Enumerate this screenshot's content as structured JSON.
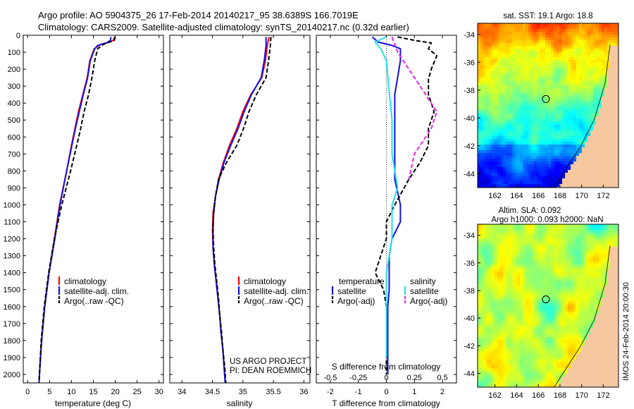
{
  "header": {
    "line1": "Argo profile: AO 5904375_26 17-Feb-2014 20140217_95 38.6389S 166.7019E",
    "line2": "Climatology: CARS2009. Satellite-adjusted climatology: synTS_20140217.nc (0.32d earlier)"
  },
  "credit": {
    "project": "US ARGO PROJECT",
    "pi": "PI: DEAN ROEMMICH"
  },
  "timestamp": "IMOS 24-Feb-2014 20:00:30",
  "colors": {
    "climatology": "#ff0000",
    "satellite": "#1010ee",
    "argo": "#000000",
    "sat_salinity": "#20e0e8",
    "argo_adj_salinity": "#ee20ee",
    "land": "#f5c8a0"
  },
  "chart_data": [
    {
      "type": "line",
      "id": "temperature",
      "xlabel": "temperature (deg C)",
      "ylabel": "",
      "xlim": [
        -1,
        31
      ],
      "ylim": [
        2050,
        0
      ],
      "x_ticks": [
        0,
        5,
        10,
        15,
        20,
        25,
        30
      ],
      "y_ticks": [
        0,
        100,
        200,
        300,
        400,
        500,
        600,
        700,
        800,
        900,
        1000,
        1100,
        1200,
        1300,
        1400,
        1500,
        1600,
        1700,
        1800,
        1900,
        2000
      ],
      "legend": [
        "climatology",
        "satellite-adj. clim.",
        "Argo(..raw -QC)"
      ],
      "legend_position": "bottom-right",
      "series": [
        {
          "name": "climatology",
          "points": [
            [
              19.8,
              10
            ],
            [
              19.6,
              30
            ],
            [
              18.6,
              40
            ],
            [
              16.6,
              55
            ],
            [
              15.2,
              80
            ],
            [
              14.2,
              150
            ],
            [
              13.6,
              250
            ],
            [
              12.6,
              350
            ],
            [
              11.6,
              450
            ],
            [
              10.8,
              550
            ],
            [
              10.0,
              650
            ],
            [
              8.9,
              800
            ],
            [
              7.3,
              1000
            ],
            [
              6.1,
              1200
            ],
            [
              4.9,
              1400
            ],
            [
              3.9,
              1600
            ],
            [
              3.2,
              1800
            ],
            [
              2.7,
              2000
            ],
            [
              2.6,
              2050
            ]
          ]
        },
        {
          "name": "satellite-adj. clim.",
          "points": [
            [
              19.0,
              10
            ],
            [
              18.9,
              30
            ],
            [
              18.0,
              45
            ],
            [
              16.0,
              60
            ],
            [
              15.3,
              80
            ],
            [
              14.3,
              150
            ],
            [
              13.7,
              250
            ],
            [
              12.7,
              350
            ],
            [
              11.8,
              450
            ],
            [
              10.9,
              550
            ],
            [
              10.1,
              650
            ],
            [
              8.9,
              800
            ],
            [
              7.4,
              1000
            ],
            [
              6.2,
              1200
            ],
            [
              4.9,
              1400
            ],
            [
              3.9,
              1600
            ],
            [
              3.2,
              1800
            ],
            [
              2.7,
              2000
            ],
            [
              2.6,
              2050
            ]
          ]
        },
        {
          "name": "Argo(..raw -QC)",
          "points": [
            [
              20.0,
              10
            ],
            [
              19.8,
              30
            ],
            [
              18.5,
              42
            ],
            [
              17.2,
              55
            ],
            [
              16.0,
              80
            ],
            [
              15.3,
              150
            ],
            [
              14.7,
              250
            ],
            [
              13.9,
              350
            ],
            [
              12.9,
              450
            ],
            [
              12.1,
              550
            ],
            [
              11.2,
              650
            ],
            [
              9.8,
              800
            ],
            [
              7.8,
              1000
            ],
            [
              6.1,
              1200
            ],
            [
              4.8,
              1400
            ],
            [
              3.8,
              1600
            ],
            [
              3.1,
              1800
            ],
            [
              2.7,
              2000
            ],
            [
              2.6,
              2050
            ]
          ]
        }
      ]
    },
    {
      "type": "line",
      "id": "salinity",
      "xlabel": "salinity",
      "ylabel": "",
      "xlim": [
        33.8,
        36.1
      ],
      "ylim": [
        2050,
        0
      ],
      "x_ticks": [
        34,
        34.5,
        35,
        35.5,
        36
      ],
      "legend": [
        "climatology",
        "satellite-adj. clim.",
        "Argo(..raw -QC)"
      ],
      "legend_position": "bottom-right",
      "series": [
        {
          "name": "climatology",
          "points": [
            [
              35.43,
              10
            ],
            [
              35.4,
              60
            ],
            [
              35.37,
              150
            ],
            [
              35.31,
              250
            ],
            [
              35.13,
              350
            ],
            [
              35.0,
              450
            ],
            [
              34.9,
              550
            ],
            [
              34.78,
              650
            ],
            [
              34.68,
              750
            ],
            [
              34.6,
              850
            ],
            [
              34.55,
              950
            ],
            [
              34.51,
              1050
            ],
            [
              34.5,
              1150
            ],
            [
              34.51,
              1250
            ],
            [
              34.53,
              1350
            ],
            [
              34.56,
              1450
            ],
            [
              34.59,
              1550
            ],
            [
              34.62,
              1650
            ],
            [
              34.64,
              1750
            ],
            [
              34.67,
              1850
            ],
            [
              34.69,
              1950
            ],
            [
              34.71,
              2050
            ]
          ]
        },
        {
          "name": "satellite-adj. clim.",
          "points": [
            [
              35.38,
              10
            ],
            [
              35.38,
              60
            ],
            [
              35.35,
              150
            ],
            [
              35.3,
              250
            ],
            [
              35.14,
              350
            ],
            [
              35.02,
              450
            ],
            [
              34.92,
              550
            ],
            [
              34.8,
              650
            ],
            [
              34.69,
              750
            ],
            [
              34.61,
              850
            ],
            [
              34.55,
              950
            ],
            [
              34.52,
              1050
            ],
            [
              34.51,
              1150
            ],
            [
              34.51,
              1250
            ],
            [
              34.53,
              1350
            ],
            [
              34.56,
              1450
            ],
            [
              34.59,
              1550
            ],
            [
              34.62,
              1650
            ],
            [
              34.64,
              1750
            ],
            [
              34.67,
              1850
            ],
            [
              34.69,
              1950
            ],
            [
              34.71,
              2050
            ]
          ]
        },
        {
          "name": "Argo(..raw -QC)",
          "points": [
            [
              35.46,
              10
            ],
            [
              35.45,
              60
            ],
            [
              35.42,
              150
            ],
            [
              35.38,
              250
            ],
            [
              35.22,
              350
            ],
            [
              35.1,
              450
            ],
            [
              35.01,
              550
            ],
            [
              34.9,
              650
            ],
            [
              34.73,
              750
            ],
            [
              34.6,
              850
            ],
            [
              34.55,
              950
            ],
            [
              34.52,
              1050
            ],
            [
              34.51,
              1150
            ],
            [
              34.52,
              1250
            ],
            [
              34.54,
              1350
            ],
            [
              34.57,
              1450
            ],
            [
              34.6,
              1550
            ],
            [
              34.62,
              1650
            ],
            [
              34.65,
              1750
            ],
            [
              34.67,
              1850
            ],
            [
              34.7,
              1950
            ],
            [
              34.72,
              2050
            ]
          ]
        }
      ]
    },
    {
      "type": "line",
      "id": "difference",
      "xlabel": "T difference from climatology",
      "x2label": "S difference from climatology",
      "ylabel": "",
      "xlim": [
        -2.5,
        2.5
      ],
      "ylim": [
        2050,
        0
      ],
      "x_ticks": [
        -2,
        -1,
        0,
        1,
        2
      ],
      "x2_ticks": [
        -0.5,
        -0.25,
        0,
        0.25,
        0.5
      ],
      "legend_groups": [
        {
          "title": "temperature",
          "entries": [
            "satellite",
            "Argo(-adj)"
          ]
        },
        {
          "title": "salinity",
          "entries": [
            "satellite",
            "Argo(-adj)"
          ]
        }
      ],
      "legend_position": "bottom",
      "series": [
        {
          "name": "temperature satellite",
          "points": [
            [
              -0.5,
              10
            ],
            [
              -0.3,
              40
            ],
            [
              0.2,
              60
            ],
            [
              0.5,
              80
            ],
            [
              0.5,
              150
            ],
            [
              0.4,
              250
            ],
            [
              0.3,
              350
            ],
            [
              0.3,
              450
            ],
            [
              0.3,
              550
            ],
            [
              0.3,
              650
            ],
            [
              0.3,
              750
            ],
            [
              0.3,
              850
            ],
            [
              0.5,
              1000
            ],
            [
              0.5,
              1100
            ],
            [
              0.2,
              1200
            ],
            [
              0.1,
              1300
            ],
            [
              0.1,
              1400
            ],
            [
              0.1,
              1500
            ],
            [
              0.05,
              1600
            ],
            [
              0.05,
              1800
            ],
            [
              0.05,
              2000
            ]
          ]
        },
        {
          "name": "temperature Argo(-adj)",
          "points": [
            [
              0.4,
              10
            ],
            [
              1.0,
              30
            ],
            [
              1.6,
              45
            ],
            [
              1.5,
              80
            ],
            [
              1.8,
              120
            ],
            [
              1.6,
              200
            ],
            [
              1.5,
              260
            ],
            [
              1.5,
              350
            ],
            [
              1.7,
              450
            ],
            [
              1.5,
              550
            ],
            [
              1.5,
              650
            ],
            [
              1.2,
              750
            ],
            [
              0.8,
              850
            ],
            [
              0.3,
              1000
            ],
            [
              0.0,
              1100
            ],
            [
              0.0,
              1200
            ],
            [
              -0.2,
              1300
            ],
            [
              -0.4,
              1400
            ],
            [
              -0.1,
              1500
            ],
            [
              0.0,
              1600
            ],
            [
              0.0,
              1800
            ],
            [
              0.0,
              2000
            ]
          ]
        },
        {
          "name": "salinity satellite",
          "points": [
            [
              0.0,
              10
            ],
            [
              -0.1,
              40
            ],
            [
              -0.05,
              80
            ],
            [
              0.0,
              150
            ],
            [
              0.02,
              300
            ],
            [
              0.05,
              500
            ],
            [
              0.05,
              700
            ],
            [
              0.1,
              900
            ],
            [
              0.05,
              1000
            ],
            [
              0.05,
              1200
            ],
            [
              0.0,
              1400
            ],
            [
              0.0,
              1500
            ],
            [
              0.0,
              1700
            ],
            [
              0.0,
              1900
            ]
          ]
        },
        {
          "name": "salinity Argo(-adj)",
          "points": [
            [
              0.05,
              10
            ],
            [
              0.1,
              100
            ],
            [
              0.25,
              250
            ],
            [
              0.35,
              350
            ],
            [
              0.45,
              450
            ],
            [
              0.4,
              550
            ],
            [
              0.3,
              650
            ],
            [
              0.25,
              700
            ],
            [
              0.2,
              850
            ]
          ]
        }
      ]
    },
    {
      "type": "heatmap",
      "id": "sst-map",
      "title": "sat. SST: 19.1 Argo: 18.8",
      "xlim": [
        160.4,
        173.4
      ],
      "ylim": [
        -45,
        -33.2
      ],
      "x_ticks": [
        162,
        164,
        166,
        168,
        170,
        172
      ],
      "y_ticks": [
        -34,
        -36,
        -38,
        -40,
        -42,
        -44
      ],
      "marker": {
        "lon": 166.7,
        "lat": -38.64
      }
    },
    {
      "type": "heatmap",
      "id": "sla-map",
      "title": "Altim. SLA: 0.092",
      "subtitle": "Argo h1000: 0.093 h2000: NaN",
      "xlim": [
        160.4,
        173.4
      ],
      "ylim": [
        -45,
        -33.2
      ],
      "x_ticks": [
        162,
        164,
        166,
        168,
        170,
        172
      ],
      "y_ticks": [
        -34,
        -36,
        -38,
        -40,
        -42,
        -44
      ],
      "marker": {
        "lon": 166.7,
        "lat": -38.64
      }
    }
  ]
}
